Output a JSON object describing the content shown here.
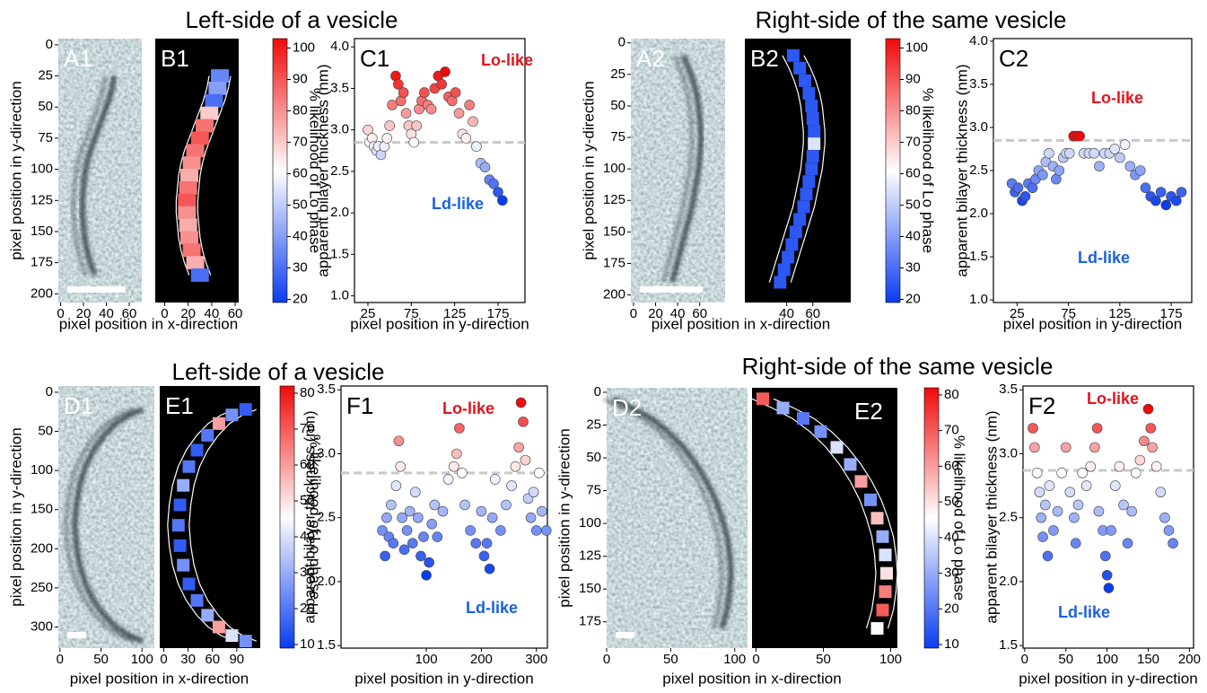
{
  "titles": [
    "Left-side of a vesicle",
    "Right-side of the same vesicle",
    "Left-side of a vesicle",
    "Right-side of the same vesicle"
  ],
  "colormap": [
    "#0a3cf0",
    "#ffffff",
    "#f00a0a"
  ],
  "chart_data": [
    {
      "type": "image",
      "label": "A1",
      "ylabel": "pixel position in y-direction",
      "xlabel": "pixel position in x-direction",
      "xlim": [
        -2,
        71
      ],
      "ylim": [
        -5,
        207
      ],
      "xticks": [
        0,
        20,
        40,
        60
      ],
      "yticks": [
        0,
        25,
        50,
        75,
        100,
        125,
        150,
        175,
        200
      ]
    },
    {
      "type": "strip",
      "label": "B1",
      "xlim": [
        -8,
        63
      ],
      "ylim": [
        -5,
        207
      ],
      "xticks": [
        0,
        20,
        40,
        60
      ],
      "strip": {
        "x": [
          47,
          45,
          42,
          38,
          34,
          30,
          26,
          23,
          21,
          20,
          19,
          19,
          20,
          21,
          23,
          26,
          30
        ],
        "y": [
          25,
          35,
          45,
          55,
          65,
          75,
          85,
          95,
          105,
          115,
          125,
          135,
          145,
          155,
          165,
          175,
          185
        ],
        "values": [
          35,
          40,
          30,
          70,
          85,
          90,
          85,
          80,
          75,
          85,
          90,
          80,
          75,
          80,
          85,
          75,
          30
        ]
      },
      "colorbar": {
        "lim": [
          19,
          103
        ],
        "ticks": [
          20,
          30,
          40,
          50,
          60,
          70,
          80,
          90,
          100
        ],
        "label": "% likelihood of Lo phase"
      }
    },
    {
      "type": "scatter",
      "label": "C1",
      "ylabel": "apparent bilayer thickness (nm)",
      "xlabel": "pixel position in y-direction",
      "xlim": [
        9.5,
        206
      ],
      "ylim": [
        0.92,
        4.1
      ],
      "xticks": [
        25,
        75,
        125,
        175
      ],
      "yticks": [
        {
          "value": 1,
          "label": "1.0"
        },
        1.5,
        {
          "value": 2,
          "label": "2.0"
        },
        2.5,
        {
          "value": 3,
          "label": "3.0"
        },
        3.5,
        {
          "value": 4,
          "label": "4.0"
        }
      ],
      "threshold": 2.85,
      "x": [
        25,
        27,
        30,
        32,
        35,
        37,
        40,
        44,
        47,
        50,
        53,
        57,
        60,
        63,
        66,
        69,
        72,
        75,
        78,
        81,
        84,
        87,
        90,
        94,
        98,
        102,
        106,
        110,
        114,
        118,
        122,
        126,
        130,
        134,
        138,
        142,
        146,
        150,
        155,
        160,
        165,
        170,
        175,
        180
      ],
      "values": [
        3.0,
        2.85,
        2.9,
        2.8,
        2.75,
        2.8,
        2.7,
        2.8,
        2.9,
        3.05,
        3.3,
        3.65,
        3.55,
        3.35,
        3.45,
        3.2,
        3.05,
        2.95,
        2.85,
        3.05,
        3.25,
        3.35,
        3.45,
        3.3,
        3.25,
        3.5,
        3.65,
        3.55,
        3.7,
        3.4,
        3.35,
        3.45,
        3.2,
        2.95,
        2.9,
        3.3,
        3.1,
        2.8,
        2.6,
        2.55,
        2.4,
        2.35,
        2.25,
        2.15
      ],
      "annotations": [
        {
          "text": "Lo-like",
          "color": "#e0141e"
        },
        {
          "text": "Ld-like",
          "color": "#1a60e0"
        }
      ]
    },
    {
      "type": "image",
      "label": "A2",
      "ylabel": "pixel position in y-direction",
      "xlabel": "pixel position in x-direction",
      "xlim": [
        -2.4,
        83
      ],
      "ylim": [
        -3.4,
        206
      ],
      "xticks": [
        0,
        20,
        40,
        60
      ],
      "yticks": [
        0,
        25,
        50,
        75,
        100,
        125,
        150,
        175,
        200
      ]
    },
    {
      "type": "strip",
      "label": "B2",
      "xlim": [
        8,
        89
      ],
      "ylim": [
        -3.4,
        206
      ],
      "xticks": [
        40,
        60
      ],
      "strip": {
        "x": [
          45,
          50,
          54,
          57,
          59,
          60,
          61,
          61,
          60,
          59,
          57,
          55,
          53,
          50,
          47,
          44,
          41,
          38,
          35
        ],
        "y": [
          10,
          20,
          30,
          40,
          50,
          60,
          70,
          80,
          90,
          100,
          110,
          120,
          130,
          140,
          150,
          160,
          170,
          180,
          190
        ],
        "values": [
          25,
          25,
          25,
          25,
          25,
          25,
          25,
          55,
          25,
          25,
          25,
          25,
          25,
          25,
          25,
          25,
          25,
          25,
          25
        ]
      },
      "colorbar": {
        "lim": [
          19,
          103
        ],
        "ticks": [
          20,
          30,
          40,
          50,
          60,
          70,
          80,
          90,
          100
        ],
        "label": "% likelihood of Lo phase"
      }
    },
    {
      "type": "scatter",
      "label": "C2",
      "ylabel": "apparent bilayer thickness (nm)",
      "xlabel": "pixel position in y-direction",
      "xlim": [
        2,
        195
      ],
      "ylim": [
        0.97,
        4.03
      ],
      "xticks": [
        25,
        75,
        125,
        175
      ],
      "yticks": [
        {
          "value": 1,
          "label": "1.0"
        },
        1.5,
        {
          "value": 2,
          "label": "2.0"
        },
        2.5,
        {
          "value": 3,
          "label": "3.0"
        },
        3.5,
        {
          "value": 4,
          "label": "4.0"
        }
      ],
      "threshold": 2.85,
      "x": [
        20,
        23,
        26,
        30,
        33,
        36,
        40,
        43,
        46,
        50,
        53,
        56,
        60,
        63,
        66,
        70,
        73,
        76,
        80,
        83,
        86,
        90,
        95,
        100,
        105,
        110,
        115,
        120,
        125,
        130,
        135,
        140,
        145,
        150,
        155,
        160,
        165,
        170,
        175,
        180,
        185
      ],
      "values": [
        2.35,
        2.25,
        2.3,
        2.15,
        2.2,
        2.35,
        2.3,
        2.4,
        2.5,
        2.45,
        2.6,
        2.7,
        2.55,
        2.4,
        2.5,
        2.65,
        2.7,
        2.7,
        2.9,
        2.9,
        2.9,
        2.7,
        2.7,
        2.7,
        2.55,
        2.7,
        2.7,
        2.75,
        2.65,
        2.8,
        2.55,
        2.45,
        2.5,
        2.3,
        2.2,
        2.15,
        2.25,
        2.1,
        2.2,
        2.15,
        2.25
      ],
      "annotations": [
        {
          "text": "Lo-like",
          "color": "#e0141e"
        },
        {
          "text": "Ld-like",
          "color": "#1a60e0"
        }
      ]
    },
    {
      "type": "image",
      "label": "D1",
      "ylabel": "pixel position in y-direction",
      "xlabel": "pixel position in x-direction",
      "xlim": [
        -2,
        115
      ],
      "ylim": [
        -8,
        327
      ],
      "xticks": [
        0,
        50,
        100
      ],
      "yticks": [
        0,
        50,
        100,
        150,
        200,
        250,
        300
      ]
    },
    {
      "type": "strip",
      "label": "E1",
      "xlim": [
        -5,
        119
      ],
      "ylim": [
        -8,
        327
      ],
      "xticks": [
        0,
        30,
        60,
        90
      ],
      "strip": {
        "x": [
          101,
          84,
          68,
          54,
          41,
          31,
          24,
          20,
          18,
          20,
          24,
          31,
          41,
          54,
          68,
          84,
          101
        ],
        "y": [
          22,
          29,
          40,
          55,
          74,
          95,
          119,
          144,
          170,
          196,
          221,
          245,
          266,
          285,
          300,
          311,
          318
        ],
        "values": [
          15,
          25,
          60,
          20,
          15,
          20,
          30,
          15,
          20,
          15,
          25,
          15,
          20,
          30,
          60,
          40,
          25
        ]
      },
      "colorbar": {
        "lim": [
          9,
          82
        ],
        "ticks": [
          10,
          20,
          30,
          40,
          50,
          60,
          70,
          80
        ],
        "label": "% likelihood of Lo phase"
      }
    },
    {
      "type": "scatter",
      "label": "F1",
      "ylabel": "apparent bilayer thickness (nm)",
      "xlabel": "pixel position in y-direction",
      "xlim": [
        -55,
        320
      ],
      "ylim": [
        1.48,
        3.53
      ],
      "xticks": [
        100,
        200,
        300
      ],
      "yticks": [
        1.5,
        {
          "value": 2,
          "label": "2.0"
        },
        2.5,
        {
          "value": 3,
          "label": "3.0"
        },
        3.5
      ],
      "threshold": 2.85,
      "x": [
        20,
        25,
        28,
        32,
        36,
        40,
        45,
        50,
        53,
        56,
        60,
        65,
        70,
        75,
        80,
        85,
        90,
        95,
        100,
        105,
        110,
        115,
        120,
        130,
        140,
        150,
        155,
        160,
        165,
        170,
        180,
        190,
        200,
        205,
        210,
        215,
        220,
        225,
        235,
        245,
        255,
        262,
        268,
        272,
        276,
        280,
        285,
        290,
        295,
        300,
        305,
        310,
        318
      ],
      "values": [
        2.4,
        2.2,
        2.5,
        2.35,
        2.6,
        2.3,
        2.75,
        3.1,
        2.9,
        2.5,
        2.25,
        2.4,
        2.55,
        2.3,
        2.7,
        2.5,
        2.2,
        2.35,
        2.05,
        2.15,
        2.45,
        2.6,
        2.35,
        2.55,
        2.8,
        2.9,
        3.0,
        3.2,
        2.85,
        2.6,
        2.4,
        2.3,
        2.55,
        2.2,
        2.3,
        2.1,
        2.5,
        2.8,
        2.4,
        2.6,
        2.75,
        2.9,
        3.05,
        3.4,
        3.25,
        2.95,
        2.65,
        2.5,
        2.7,
        2.4,
        2.85,
        2.55,
        2.4
      ],
      "annotations": [
        {
          "text": "Lo-like",
          "color": "#e0141e"
        },
        {
          "text": "Ld-like",
          "color": "#1a60e0"
        }
      ]
    },
    {
      "type": "image",
      "label": "D2",
      "ylabel": "pixel position in y-direction",
      "xlabel": "pixel position in x-direction",
      "xlim": [
        0,
        110
      ],
      "ylim": [
        -3.4,
        195
      ],
      "xticks": [
        0,
        50,
        100
      ],
      "yticks": [
        0,
        25,
        50,
        75,
        100,
        125,
        150,
        175
      ]
    },
    {
      "type": "strip",
      "label": "E2",
      "xlim": [
        -3,
        105
      ],
      "ylim": [
        -3.4,
        195
      ],
      "xticks": [
        0,
        50,
        100
      ],
      "strip": {
        "x": [
          5,
          20,
          35,
          48,
          60,
          70,
          78,
          85,
          90,
          94,
          96,
          97,
          96,
          94,
          90
        ],
        "y": [
          5,
          12,
          20,
          30,
          42,
          55,
          68,
          82,
          96,
          110,
          124,
          138,
          152,
          166,
          180
        ],
        "values": [
          70,
          30,
          20,
          25,
          40,
          30,
          60,
          25,
          55,
          30,
          40,
          50,
          65,
          70,
          45
        ]
      },
      "colorbar": {
        "lim": [
          9,
          82
        ],
        "ticks": [
          10,
          20,
          30,
          40,
          50,
          60,
          70,
          80
        ],
        "label": "% likelihood of Lo phase"
      }
    },
    {
      "type": "scatter",
      "label": "F2",
      "ylabel": "apparent bilayer thickness (nm)",
      "xlabel": "pixel position in y-direction",
      "xlim": [
        -2,
        205
      ],
      "ylim": [
        1.48,
        3.53
      ],
      "xticks": [
        0,
        50,
        100,
        150,
        200
      ],
      "yticks": [
        1.5,
        {
          "value": 2,
          "label": "2.0"
        },
        2.5,
        {
          "value": 3,
          "label": "3.0"
        },
        3.5
      ],
      "threshold": 2.87,
      "x": [
        10,
        12,
        15,
        18,
        20,
        22,
        25,
        28,
        30,
        35,
        40,
        45,
        50,
        55,
        60,
        62,
        65,
        70,
        75,
        80,
        85,
        88,
        90,
        95,
        98,
        100,
        102,
        105,
        110,
        115,
        120,
        125,
        130,
        135,
        140,
        145,
        150,
        153,
        155,
        160,
        165,
        170,
        175,
        180
      ],
      "values": [
        3.2,
        3.05,
        2.85,
        2.7,
        2.5,
        2.35,
        2.6,
        2.2,
        2.75,
        2.4,
        2.55,
        2.85,
        3.05,
        2.7,
        2.5,
        2.3,
        2.6,
        2.85,
        2.75,
        2.9,
        3.05,
        3.2,
        2.55,
        2.4,
        2.2,
        2.05,
        1.95,
        2.4,
        2.75,
        2.9,
        2.6,
        2.3,
        2.55,
        2.85,
        2.95,
        3.1,
        3.35,
        3.2,
        3.05,
        2.9,
        2.7,
        2.5,
        2.4,
        2.3
      ],
      "annotations": [
        {
          "text": "Lo-like",
          "color": "#e0141e"
        },
        {
          "text": "Ld-like",
          "color": "#1a60e0"
        }
      ]
    }
  ]
}
